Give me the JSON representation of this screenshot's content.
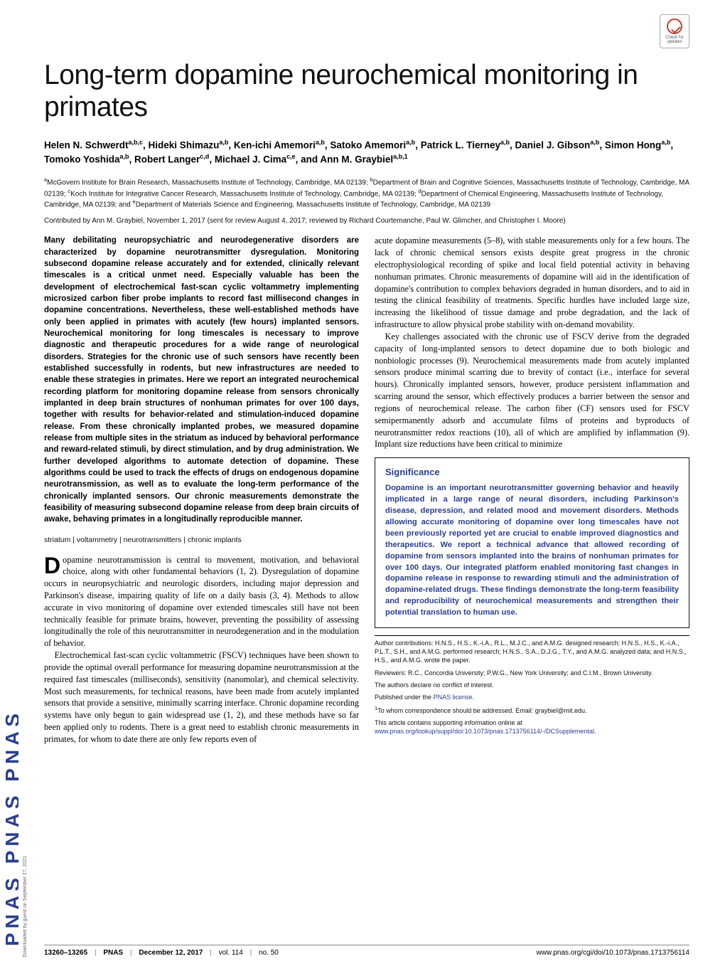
{
  "brand_sidebar": "PNAS   PNAS   PNAS",
  "download_note": "Downloaded by guest on September 27, 2021",
  "check_badge": {
    "line1": "Check for",
    "line2": "updates"
  },
  "title": "Long-term dopamine neurochemical monitoring in primates",
  "authors_html": "Helen N. Schwerdt<sup>a,b,c</sup>, Hideki Shimazu<sup>a,b</sup>, Ken-ichi Amemori<sup>a,b</sup>, Satoko Amemori<sup>a,b</sup>, Patrick L. Tierney<sup>a,b</sup>, Daniel J. Gibson<sup>a,b</sup>, Simon Hong<sup>a,b</sup>, Tomoko Yoshida<sup>a,b</sup>, Robert Langer<sup>c,d</sup>, Michael J. Cima<sup>c,e</sup>, and Ann M. Graybiel<sup>a,b,1</sup>",
  "affiliations": "<sup>a</sup>McGovern Institute for Brain Research, Massachusetts Institute of Technology, Cambridge, MA 02139; <sup>b</sup>Department of Brain and Cognitive Sciences, Massachusetts Institute of Technology, Cambridge, MA 02139; <sup>c</sup>Koch Institute for Integrative Cancer Research, Massachusetts Institute of Technology, Cambridge, MA 02139; <sup>d</sup>Department of Chemical Engineering, Massachusetts Institute of Technology, Cambridge, MA 02139; and <sup>e</sup>Department of Materials Science and Engineering, Massachusetts Institute of Technology, Cambridge, MA 02139",
  "contributed": "Contributed by Ann M. Graybiel, November 1, 2017 (sent for review August 4, 2017; reviewed by Richard Courtemanche, Paul W. Glimcher, and Christopher I. Moore)",
  "abstract": "Many debilitating neuropsychiatric and neurodegenerative disorders are characterized by dopamine neurotransmitter dysregulation. Monitoring subsecond dopamine release accurately and for extended, clinically relevant timescales is a critical unmet need. Especially valuable has been the development of electrochemical fast-scan cyclic voltammetry implementing microsized carbon fiber probe implants to record fast millisecond changes in dopamine concentrations. Nevertheless, these well-established methods have only been applied in primates with acutely (few hours) implanted sensors. Neurochemical monitoring for long timescales is necessary to improve diagnostic and therapeutic procedures for a wide range of neurological disorders. Strategies for the chronic use of such sensors have recently been established successfully in rodents, but new infrastructures are needed to enable these strategies in primates. Here we report an integrated neurochemical recording platform for monitoring dopamine release from sensors chronically implanted in deep brain structures of nonhuman primates for over 100 days, together with results for behavior-related and stimulation-induced dopamine release. From these chronically implanted probes, we measured dopamine release from multiple sites in the striatum as induced by behavioral performance and reward-related stimuli, by direct stimulation, and by drug administration. We further developed algorithms to automate detection of dopamine. These algorithms could be used to track the effects of drugs on endogenous dopamine neurotransmission, as well as to evaluate the long-term performance of the chronically implanted sensors. Our chronic measurements demonstrate the feasibility of measuring subsecond dopamine release from deep brain circuits of awake, behaving primates in a longitudinally reproducible manner.",
  "keywords": "striatum | voltammetry | neurotransmitters | chronic implants",
  "intro_p1": "Dopamine neurotransmission is central to movement, motivation, and behavioral choice, along with other fundamental behaviors (1, 2). Dysregulation of dopamine occurs in neuropsychiatric and neurologic disorders, including major depression and Parkinson's disease, impairing quality of life on a daily basis (3, 4). Methods to allow accurate in vivo monitoring of dopamine over extended timescales still have not been technically feasible for primate brains, however, preventing the possibility of assessing longitudinally the role of this neurotransmitter in neurodegeneration and in the modulation of behavior.",
  "intro_p2": "Electrochemical fast-scan cyclic voltammetric (FSCV) techniques have been shown to provide the optimal overall performance for measuring dopamine neurotransmission at the required fast timescales (milliseconds), sensitivity (nanomolar), and chemical selectivity. Most such measurements, for technical reasons, have been made from acutely implanted sensors that provide a sensitive, minimally scarring interface. Chronic dopamine recording systems have only begun to gain widespread use (1, 2), and these methods have so far been applied only to rodents. There is a great need to establish chronic measurements in primates, for whom to date there are only few reports even of",
  "col2_p1": "acute dopamine measurements (5–8), with stable measurements only for a few hours. The lack of chronic chemical sensors exists despite great progress in the chronic electrophysiological recording of spike and local field potential activity in behaving nonhuman primates. Chronic measurements of dopamine will aid in the identification of dopamine's contribution to complex behaviors degraded in human disorders, and to aid in testing the clinical feasibility of treatments. Specific hurdles have included large size, increasing the likelihood of tissue damage and probe degradation, and the lack of infrastructure to allow physical probe stability with on-demand movability.",
  "col2_p2": "Key challenges associated with the chronic use of FSCV derive from the degraded capacity of long-implanted sensors to detect dopamine due to both biologic and nonbiologic processes (9). Neurochemical measurements made from acutely implanted sensors produce minimal scarring due to brevity of contact (i.e., interface for several hours). Chronically implanted sensors, however, produce persistent inflammation and scarring around the sensor, which effectively produces a barrier between the sensor and regions of neurochemical release. The carbon fiber (CF) sensors used for FSCV semipermanently adsorb and accumulate films of proteins and byproducts of neurotransmitter redox reactions (10), all of which are amplified by inflammation (9). Implant size reductions have been critical to minimize",
  "significance": {
    "heading": "Significance",
    "body": "Dopamine is an important neurotransmitter governing behavior and heavily implicated in a large range of neural disorders, including Parkinson's disease, depression, and related mood and movement disorders. Methods allowing accurate monitoring of dopamine over long timescales have not been previously reported yet are crucial to enable improved diagnostics and therapeutics. We report a technical advance that allowed recording of dopamine from sensors implanted into the brains of nonhuman primates for over 100 days. Our integrated platform enabled monitoring fast changes in dopamine release in response to rewarding stimuli and the administration of dopamine-related drugs. These findings demonstrate the long-term feasibility and reproducibility of neurochemical measurements and strengthen their potential translation to human use."
  },
  "footnotes": {
    "author_contrib": "Author contributions: H.N.S., H.S., K.-i.A., R.L., M.J.C., and A.M.G. designed research; H.N.S., H.S., K.-i.A., P.L.T., S.H., and A.M.G. performed research; H.N.S., S.A., D.J.G., T.Y., and A.M.G. analyzed data; and H.N.S., H.S., and A.M.G. wrote the paper.",
    "reviewers": "Reviewers: R.C., Concordia University; P.W.G., New York University; and C.I.M., Brown University.",
    "conflict": "The authors declare no conflict of interest.",
    "license_pre": "Published under the ",
    "license_link": "PNAS license",
    "license_post": ".",
    "correspondence": "To whom correspondence should be addressed. Email: graybiel@mit.edu.",
    "supporting_pre": "This article contains supporting information online at ",
    "supporting_link": "www.pnas.org/lookup/suppl/doi:10.1073/pnas.1713756114/-/DCSupplemental",
    "supporting_post": "."
  },
  "footer": {
    "pages": "13260–13265",
    "journal": "PNAS",
    "date": "December 12, 2017",
    "vol": "vol. 114",
    "issue": "no. 50",
    "doi": "www.pnas.org/cgi/doi/10.1073/pnas.1713756114"
  },
  "colors": {
    "brand_blue": "#2a3f8f",
    "text": "#000000",
    "rule": "#888888"
  }
}
